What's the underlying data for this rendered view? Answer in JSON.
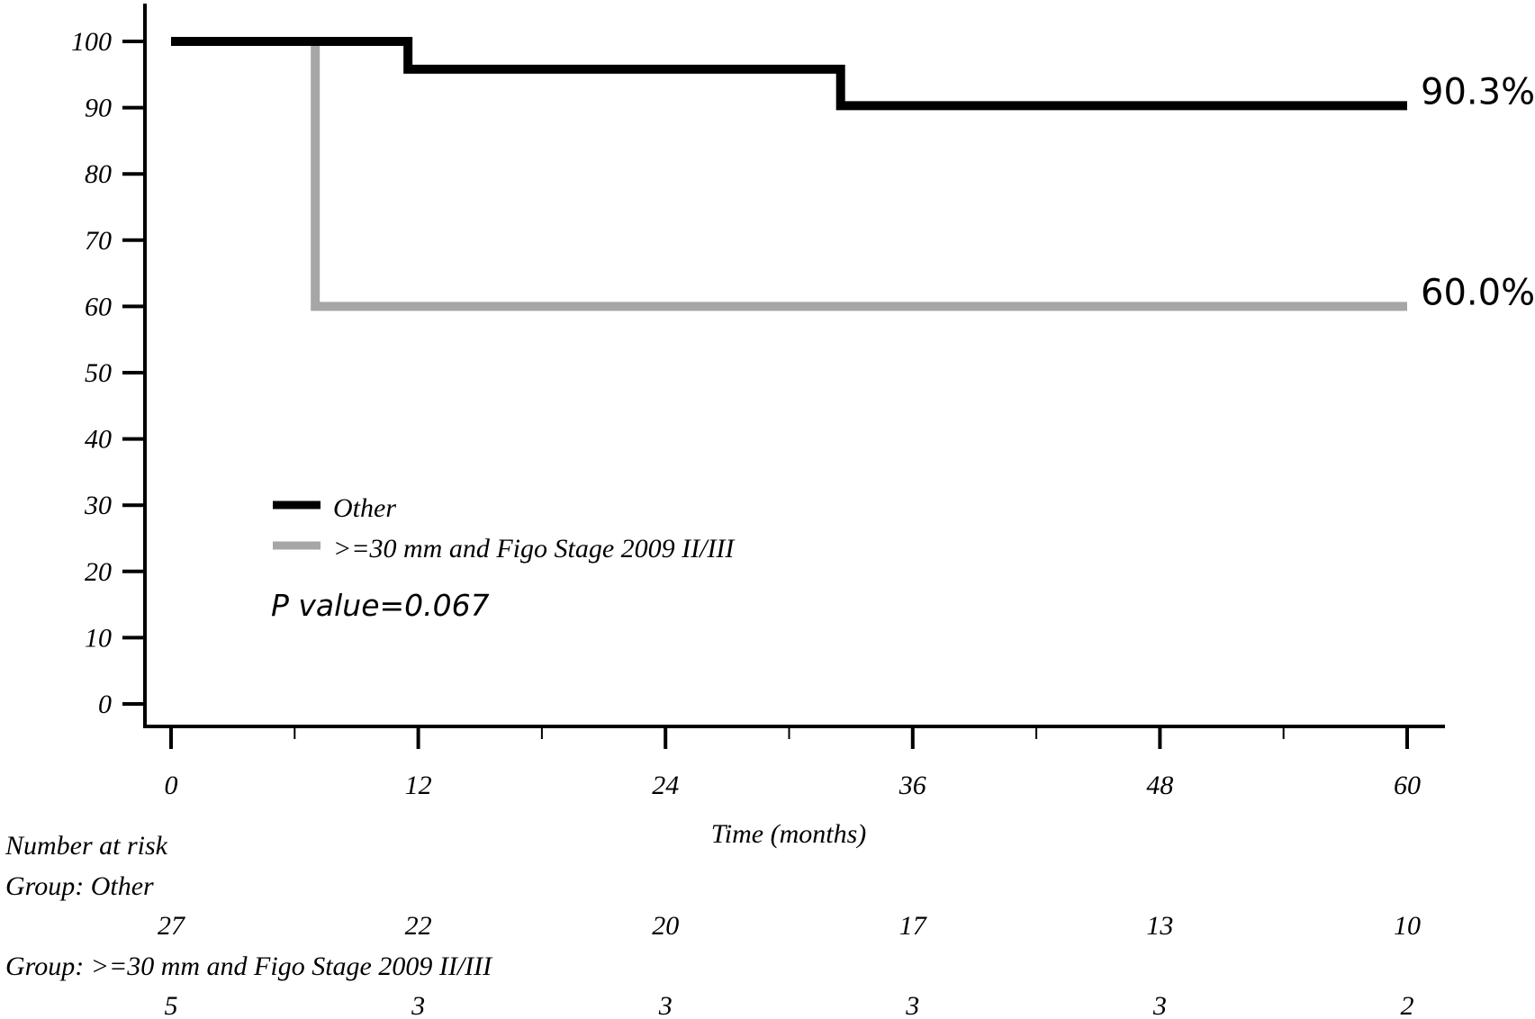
{
  "chart_data": {
    "type": "line",
    "subtype": "kaplan-meier-step",
    "title": "",
    "xlabel": "Time (months)",
    "ylabel": "",
    "xlim": [
      0,
      60
    ],
    "ylim": [
      0,
      100
    ],
    "x_ticks": [
      0,
      12,
      24,
      36,
      48,
      60
    ],
    "x_tick_labels": [
      "0",
      "12",
      "24",
      "36",
      "48",
      "60"
    ],
    "y_ticks": [
      0,
      10,
      20,
      30,
      40,
      50,
      60,
      70,
      80,
      90,
      100
    ],
    "y_tick_labels": [
      "0",
      "10",
      "20",
      "30",
      "40",
      "50",
      "60",
      "70",
      "80",
      "90",
      "100"
    ],
    "grid": false,
    "legend_position": "lower-left",
    "series": [
      {
        "name": "Other",
        "color": "#000000",
        "steps": [
          [
            0,
            100
          ],
          [
            11.5,
            100
          ],
          [
            11.5,
            95.8
          ],
          [
            32.5,
            95.8
          ],
          [
            32.5,
            90.3
          ],
          [
            60,
            90.3
          ]
        ],
        "end_label": "90.3%"
      },
      {
        "name": ">=30 mm and Figo Stage 2009 II/III",
        "color": "#a6a6a6",
        "steps": [
          [
            0,
            100
          ],
          [
            7,
            100
          ],
          [
            7,
            60
          ],
          [
            60,
            60
          ]
        ],
        "end_label": "60.0%"
      }
    ],
    "annotation": "P value=0.067",
    "risk_table": {
      "title": "Number at risk",
      "times": [
        0,
        12,
        24,
        36,
        48,
        60
      ],
      "groups": [
        {
          "label": "Group: Other",
          "counts": [
            "27",
            "22",
            "20",
            "17",
            "13",
            "10"
          ]
        },
        {
          "label": "Group: >=30 mm and Figo Stage 2009 II/III",
          "counts": [
            "5",
            "3",
            "3",
            "3",
            "3",
            "2"
          ]
        }
      ]
    }
  }
}
